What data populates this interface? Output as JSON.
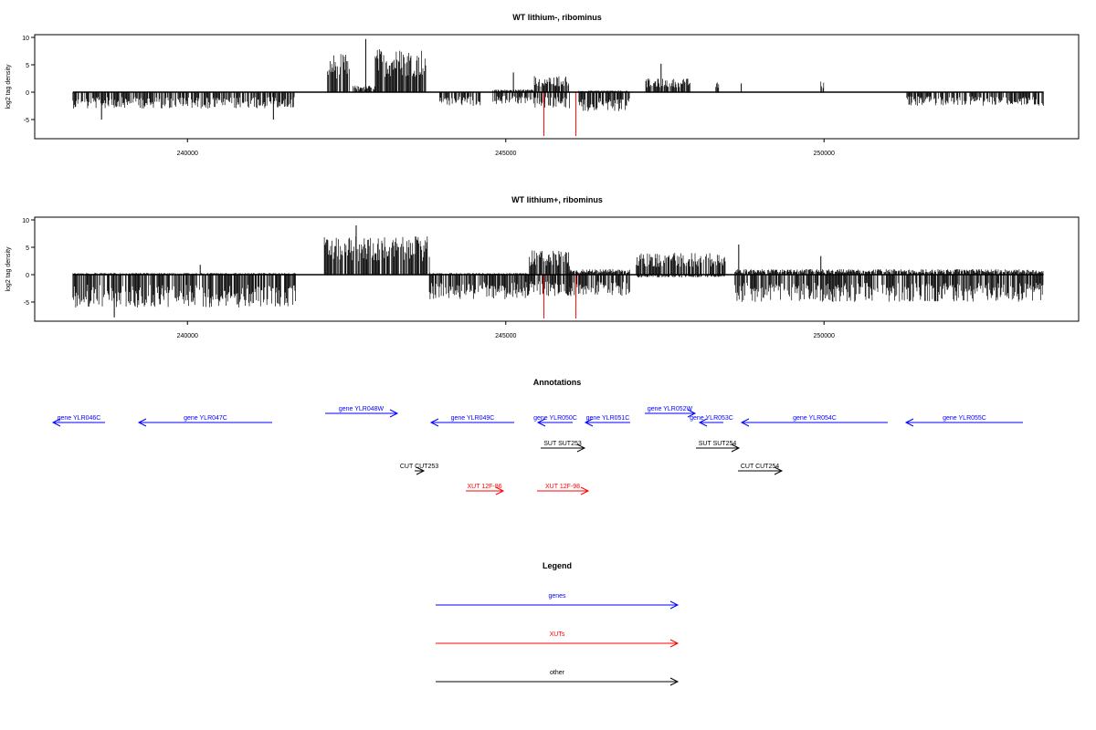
{
  "chart_data": [
    {
      "type": "bar",
      "title": "WT lithium-, ribominus",
      "ylabel": "log2 tag density",
      "xlabel": "",
      "xlim": [
        237600,
        254000
      ],
      "ylim": [
        -8.5,
        10.5
      ],
      "xticks": [
        240000,
        245000,
        250000
      ],
      "yticks": [
        -5,
        0,
        5,
        10
      ],
      "x_range": [
        238200,
        253450
      ],
      "density_profile": [
        {
          "from": 238200,
          "to": 241700,
          "pos": 0,
          "neg": 3.0
        },
        {
          "from": 242200,
          "to": 242550,
          "pos": 7.0,
          "neg": 0
        },
        {
          "from": 242600,
          "to": 242950,
          "pos": 1.2,
          "neg": 0
        },
        {
          "from": 242950,
          "to": 243750,
          "pos": 8.0,
          "neg": 0
        },
        {
          "from": 243950,
          "to": 244600,
          "pos": 0,
          "neg": 2.5
        },
        {
          "from": 244800,
          "to": 245450,
          "pos": 0.5,
          "neg": 2.2
        },
        {
          "from": 245450,
          "to": 246000,
          "pos": 3.0,
          "neg": 3.0
        },
        {
          "from": 246150,
          "to": 246950,
          "pos": 0.3,
          "neg": 3.5
        },
        {
          "from": 247200,
          "to": 247900,
          "pos": 2.5,
          "neg": 0
        },
        {
          "from": 248300,
          "to": 248350,
          "pos": 1.8,
          "neg": 0
        },
        {
          "from": 249950,
          "to": 250000,
          "pos": 2.0,
          "neg": 0
        },
        {
          "from": 251300,
          "to": 253450,
          "pos": 0,
          "neg": 2.5
        }
      ],
      "spikes": [
        {
          "x": 242800,
          "y": 9.7
        },
        {
          "x": 245120,
          "y": 3.6
        },
        {
          "x": 247440,
          "y": 5.2
        },
        {
          "x": 248700,
          "y": 1.6
        },
        {
          "x": 238650,
          "y": -5.0
        },
        {
          "x": 241350,
          "y": -5.0
        }
      ],
      "highlight_bars": [
        {
          "x": 245600,
          "y": -8.0,
          "color": "#ff0000"
        },
        {
          "x": 246100,
          "y": -8.0,
          "color": "#ff0000"
        }
      ]
    },
    {
      "type": "bar",
      "title": "WT lithium+, ribominus",
      "ylabel": "log2 tag density",
      "xlabel": "",
      "xlim": [
        237600,
        254000
      ],
      "ylim": [
        -8.5,
        10.5
      ],
      "xticks": [
        240000,
        245000,
        250000
      ],
      "yticks": [
        -5,
        0,
        5,
        10
      ],
      "x_range": [
        238200,
        253450
      ],
      "density_profile": [
        {
          "from": 238200,
          "to": 241700,
          "pos": 0.3,
          "neg": 6.0
        },
        {
          "from": 242150,
          "to": 243800,
          "pos": 7.0,
          "neg": 0
        },
        {
          "from": 243800,
          "to": 245350,
          "pos": 0.3,
          "neg": 4.5
        },
        {
          "from": 245350,
          "to": 246000,
          "pos": 4.5,
          "neg": 4.0
        },
        {
          "from": 246000,
          "to": 246950,
          "pos": 1.0,
          "neg": 4.0
        },
        {
          "from": 247050,
          "to": 248450,
          "pos": 4.0,
          "neg": 0.5
        },
        {
          "from": 248600,
          "to": 253450,
          "pos": 1.0,
          "neg": 5.0
        }
      ],
      "spikes": [
        {
          "x": 242650,
          "y": 9.0
        },
        {
          "x": 240200,
          "y": 1.8
        },
        {
          "x": 248660,
          "y": 5.5
        },
        {
          "x": 249950,
          "y": 3.4
        },
        {
          "x": 238850,
          "y": -7.8
        }
      ],
      "highlight_bars": [
        {
          "x": 245600,
          "y": -8.0,
          "color": "#ff0000"
        },
        {
          "x": 246100,
          "y": -8.0,
          "color": "#ff0000"
        }
      ]
    }
  ],
  "annotations": {
    "title": "Annotations",
    "items": [
      {
        "label": "gene YLR046C",
        "from": 115,
        "to": 58,
        "row": 2,
        "color": "#0000ff"
      },
      {
        "label": "gene YLR047C",
        "from": 298,
        "to": 152,
        "row": 2,
        "color": "#0000ff"
      },
      {
        "label": "gene YLR048W",
        "from": 356,
        "to": 435,
        "row": 1,
        "color": "#0000ff"
      },
      {
        "label": "gene YLR049C",
        "from": 563,
        "to": 472,
        "row": 2,
        "color": "#0000ff"
      },
      {
        "label": "gene YLR050C",
        "from": 627,
        "to": 589,
        "row": 2,
        "color": "#0000ff"
      },
      {
        "label": "gene YLR051C",
        "from": 690,
        "to": 641,
        "row": 2,
        "color": "#0000ff"
      },
      {
        "label": "gene YLR052W",
        "from": 706,
        "to": 761,
        "row": 1,
        "color": "#0000ff"
      },
      {
        "label": "gene YLR053C",
        "from": 792,
        "to": 766,
        "row": 2,
        "color": "#0000ff"
      },
      {
        "label": "gene YLR054C",
        "from": 972,
        "to": 812,
        "row": 2,
        "color": "#0000ff"
      },
      {
        "label": "gene YLR055C",
        "from": 1120,
        "to": 992,
        "row": 2,
        "color": "#0000ff"
      },
      {
        "label": "SUT SUT253",
        "from": 592,
        "to": 640,
        "row": 3,
        "color": "#000000"
      },
      {
        "label": "SUT SUT254",
        "from": 762,
        "to": 809,
        "row": 3,
        "color": "#000000"
      },
      {
        "label": "CUT CUT253",
        "from": 454,
        "to": 464,
        "row": 4,
        "color": "#000000"
      },
      {
        "label": "CUT CUT254",
        "from": 808,
        "to": 856,
        "row": 4,
        "color": "#000000"
      },
      {
        "label": "XUT 12F-86",
        "from": 510,
        "to": 551,
        "row": 5,
        "color": "#ff0000"
      },
      {
        "label": "XUT 12F-98",
        "from": 588,
        "to": 644,
        "row": 5,
        "color": "#ff0000"
      }
    ]
  },
  "legend": {
    "title": "Legend",
    "items": [
      {
        "label": "genes",
        "color": "#0000ff"
      },
      {
        "label": "XUTs",
        "color": "#ff0000"
      },
      {
        "label": "other",
        "color": "#000000"
      }
    ]
  }
}
